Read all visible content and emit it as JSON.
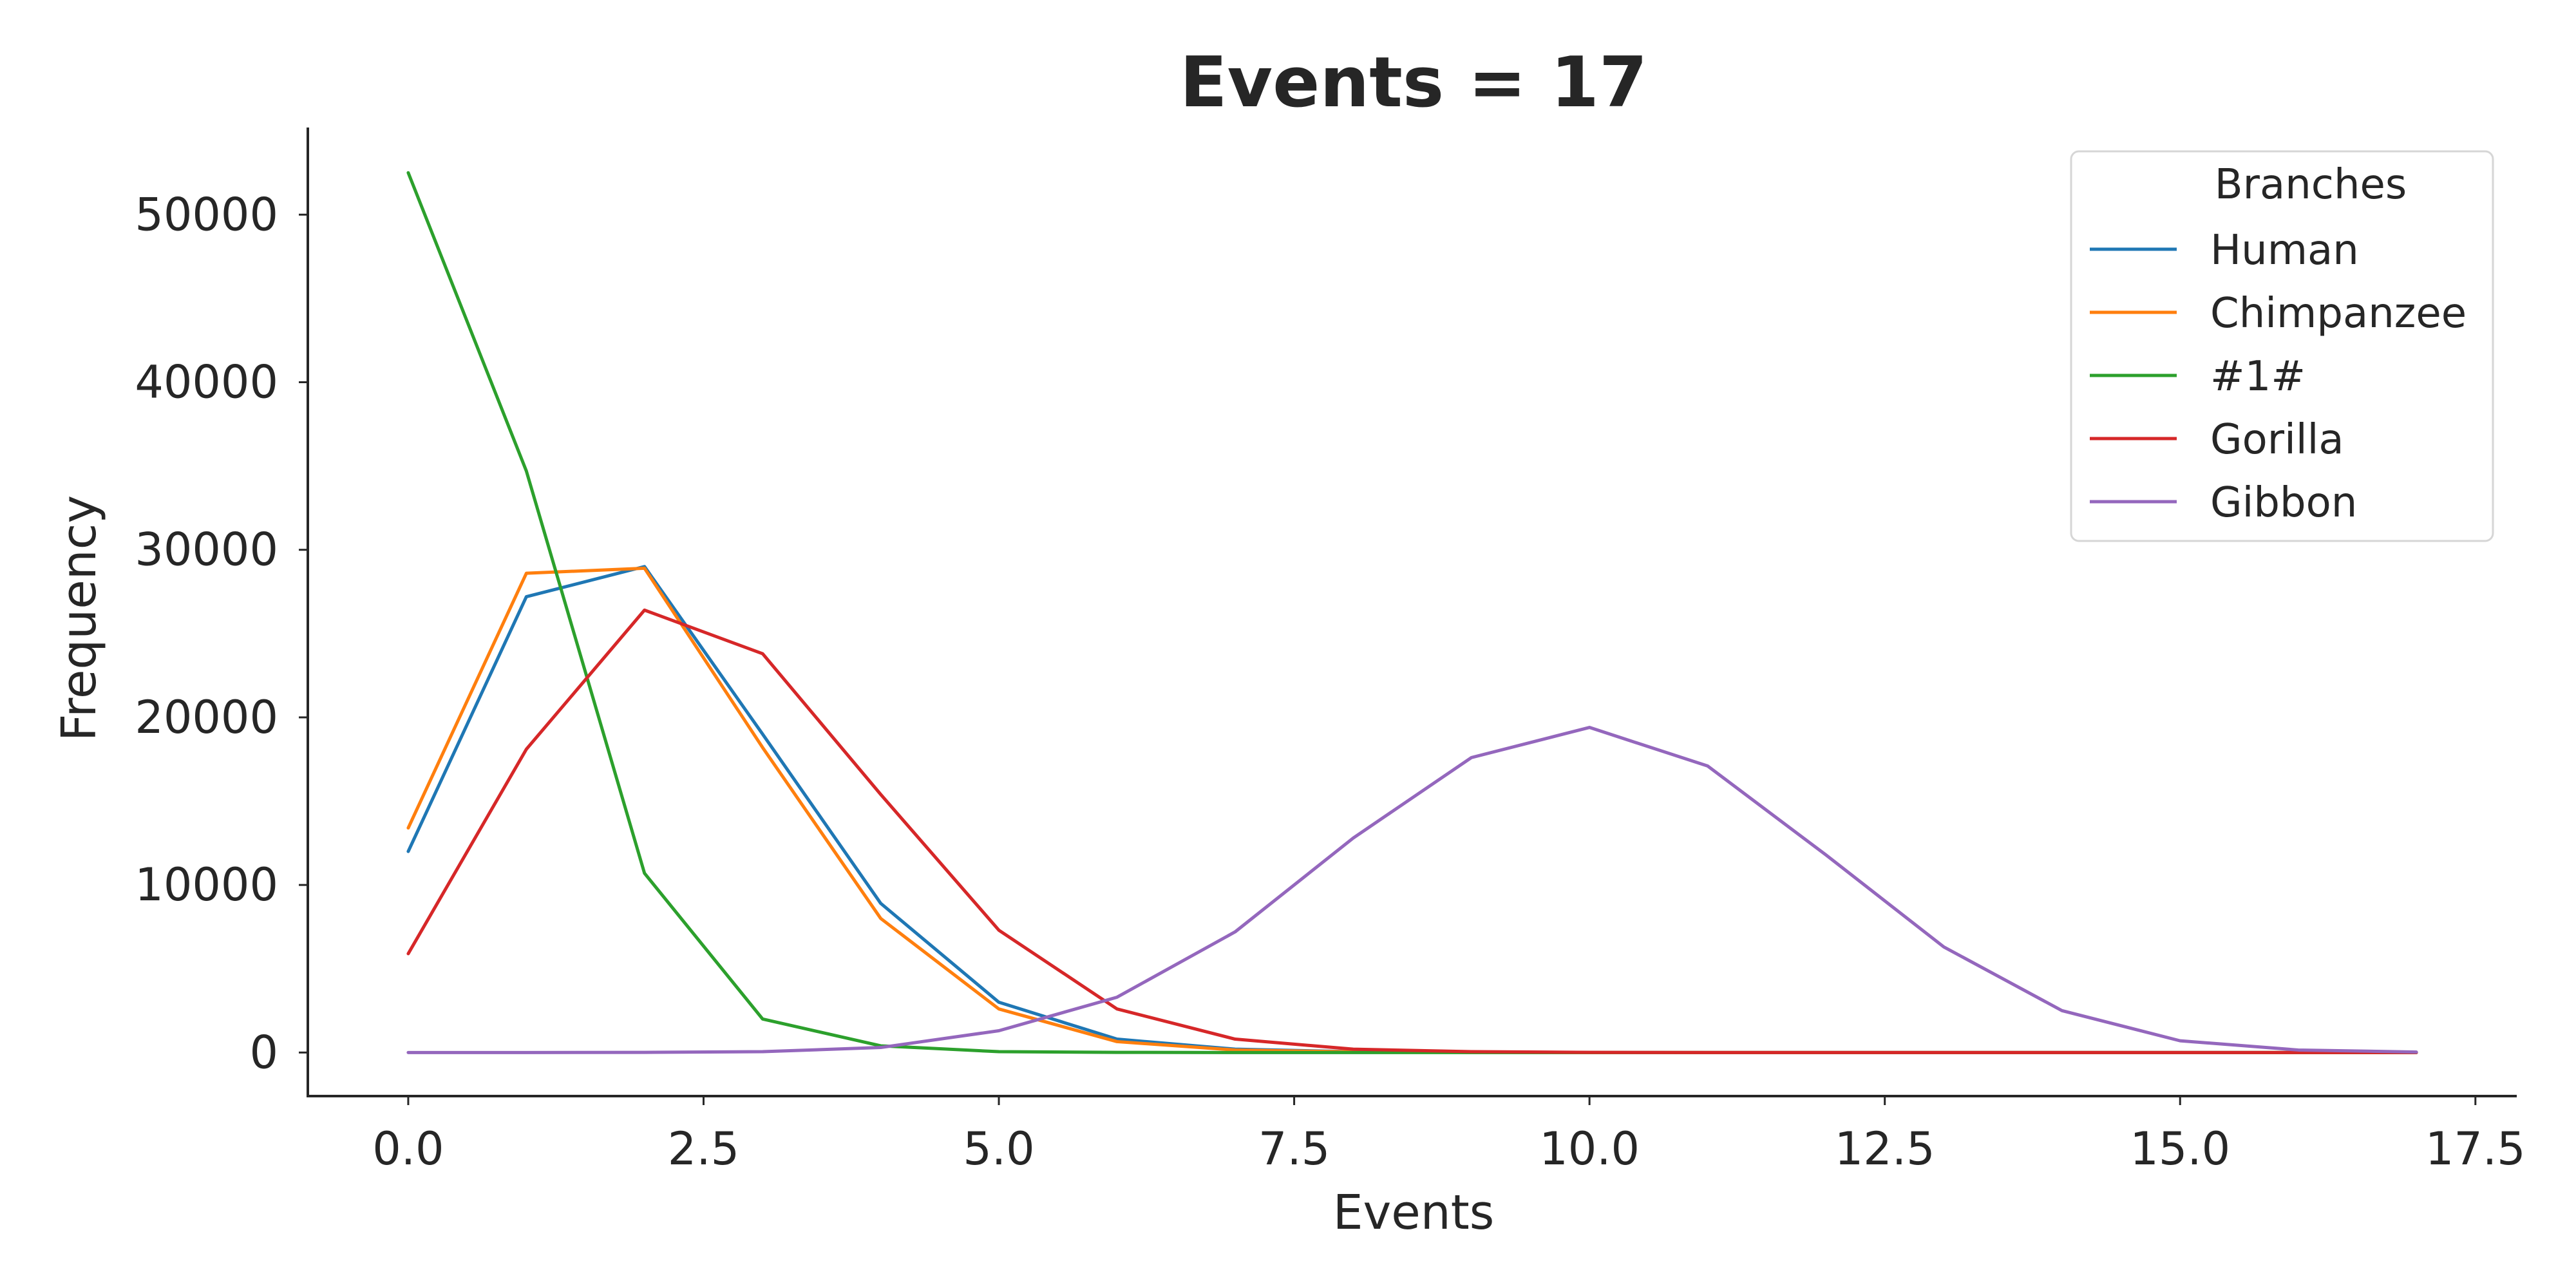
{
  "chart_data": {
    "type": "line",
    "title": "Events = 17",
    "xlabel": "Events",
    "ylabel": "Frequency",
    "xlim": [
      -0.85,
      17.85
    ],
    "ylim": [
      -2600,
      55200
    ],
    "x_ticks": [
      0.0,
      2.5,
      5.0,
      7.5,
      10.0,
      12.5,
      15.0,
      17.5
    ],
    "x_tick_labels": [
      "0.0",
      "2.5",
      "5.0",
      "7.5",
      "10.0",
      "12.5",
      "15.0",
      "17.5"
    ],
    "y_ticks": [
      0,
      10000,
      20000,
      30000,
      40000,
      50000
    ],
    "y_tick_labels": [
      "0",
      "10000",
      "20000",
      "30000",
      "40000",
      "50000"
    ],
    "grid": false,
    "legend": {
      "title": "Branches",
      "position": "top-right"
    },
    "x": [
      0,
      1,
      2,
      3,
      4,
      5,
      6,
      7,
      8,
      9,
      10,
      11,
      12,
      13,
      14,
      15,
      16,
      17
    ],
    "series": [
      {
        "name": "Human",
        "color": "#1f77b4",
        "values": [
          12000,
          27200,
          29000,
          19000,
          8900,
          3000,
          800,
          200,
          50,
          10,
          0,
          0,
          0,
          0,
          0,
          0,
          0,
          0
        ]
      },
      {
        "name": "Chimpanzee",
        "color": "#ff7f0e",
        "values": [
          13400,
          28600,
          28900,
          18200,
          8000,
          2600,
          650,
          150,
          40,
          10,
          0,
          0,
          0,
          0,
          0,
          0,
          0,
          0
        ]
      },
      {
        "name": "#1#",
        "color": "#2ca02c",
        "values": [
          52500,
          34700,
          10700,
          2000,
          400,
          50,
          10,
          0,
          0,
          0,
          0,
          0,
          0,
          0,
          0,
          0,
          0,
          0
        ]
      },
      {
        "name": "Gorilla",
        "color": "#d62728",
        "values": [
          5900,
          18100,
          26400,
          23800,
          15400,
          7300,
          2600,
          800,
          200,
          50,
          10,
          0,
          0,
          0,
          0,
          0,
          0,
          0
        ]
      },
      {
        "name": "Gibbon",
        "color": "#9467bd",
        "values": [
          0,
          0,
          10,
          50,
          300,
          1300,
          3300,
          7200,
          12800,
          17600,
          19400,
          17100,
          11800,
          6300,
          2500,
          700,
          150,
          30
        ]
      }
    ]
  }
}
